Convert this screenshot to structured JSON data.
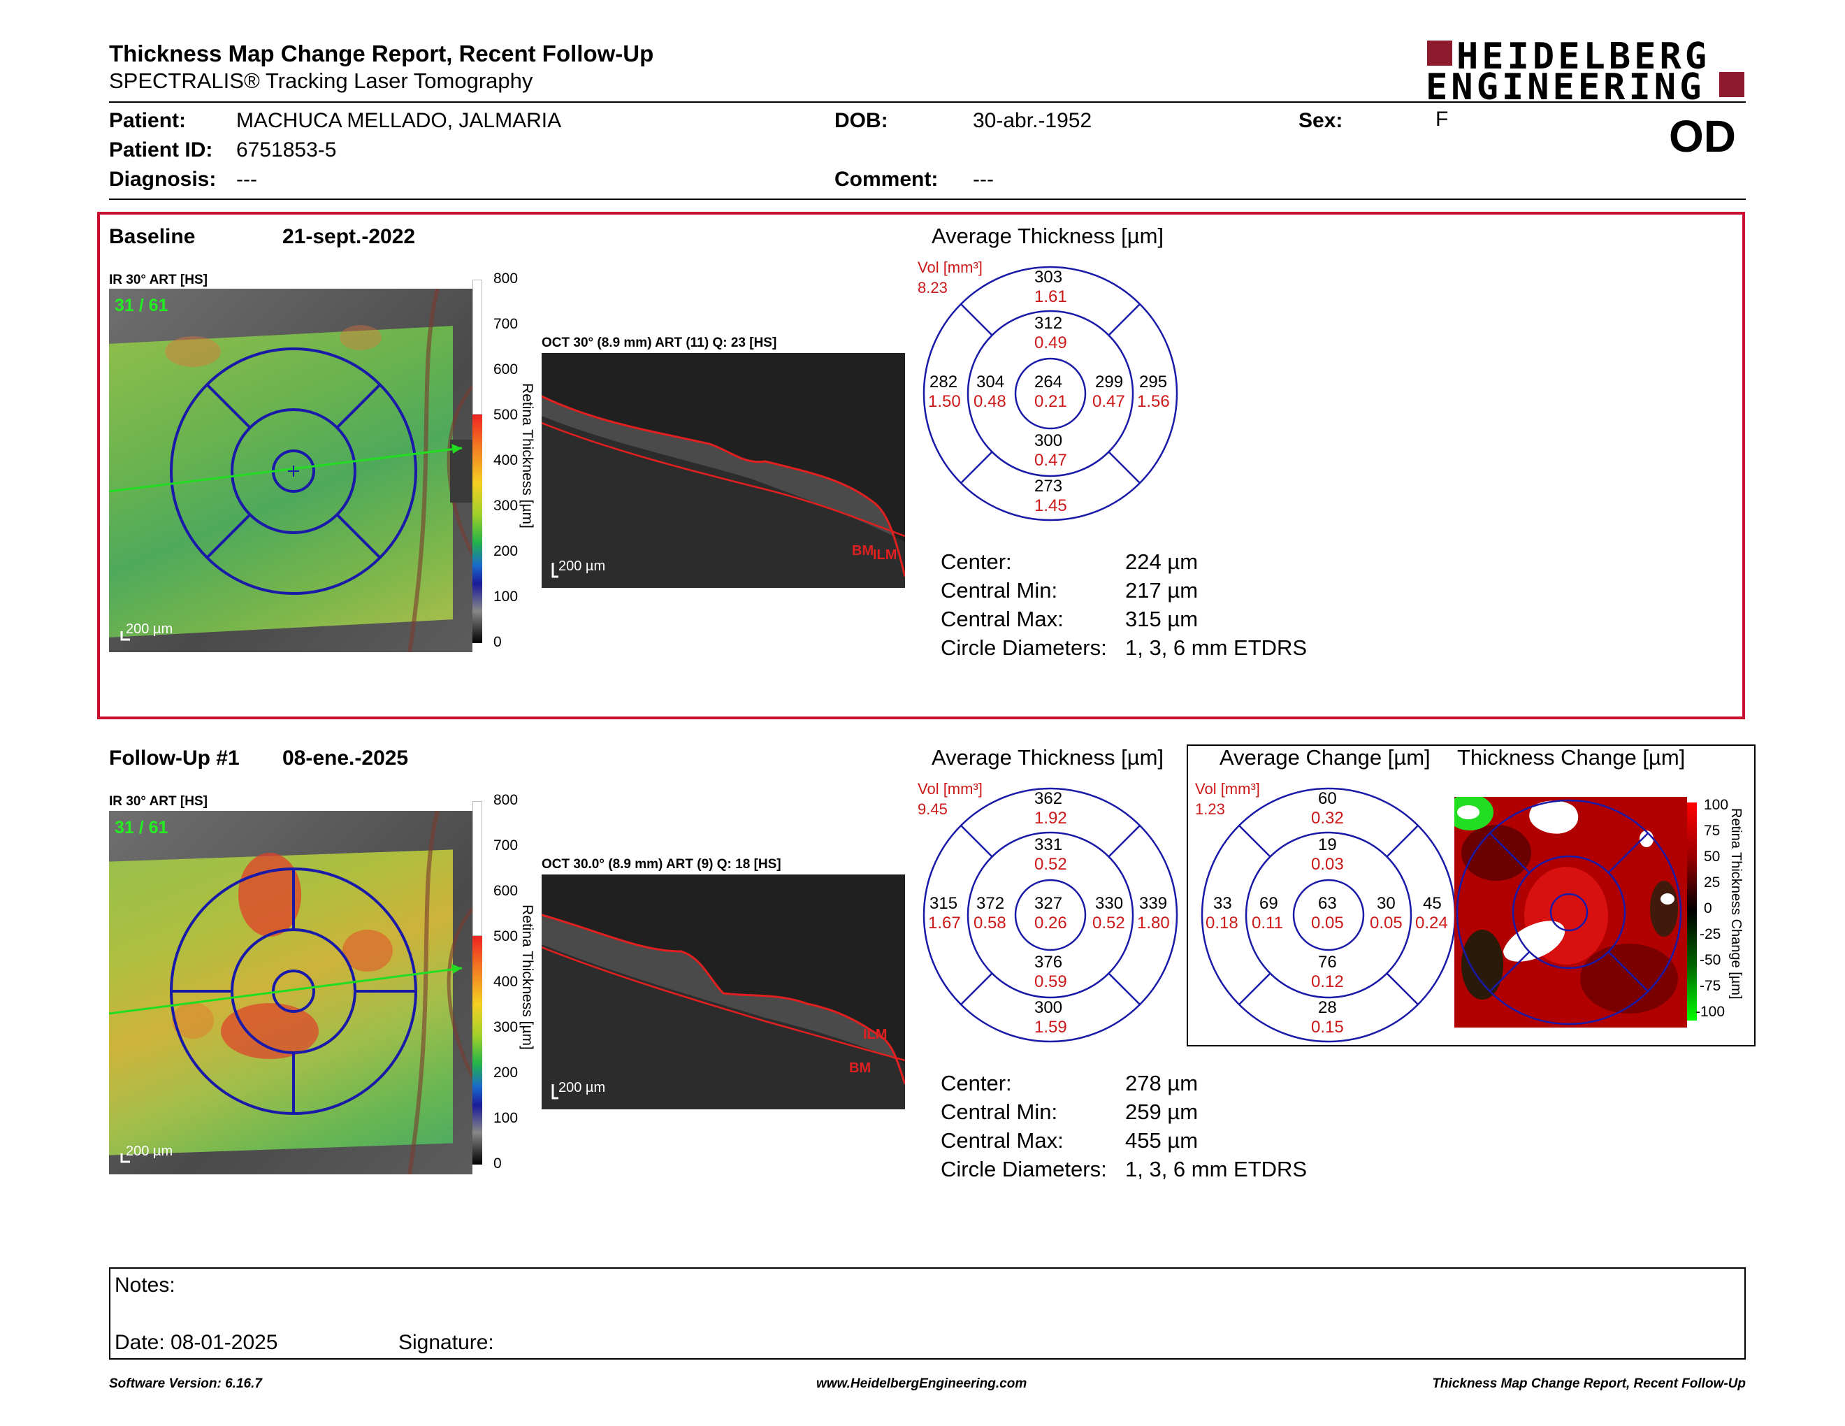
{
  "header": {
    "title": "Thickness Map Change Report, Recent Follow-Up",
    "subtitle": "SPECTRALIS® Tracking Laser Tomography",
    "logo_line1": "HEIDELBERG",
    "logo_line2": "ENGINEERING",
    "eye": "OD"
  },
  "patient": {
    "patient_label": "Patient:",
    "patient_value": "MACHUCA MELLADO, JALMARIA",
    "id_label": "Patient ID:",
    "id_value": "6751853-5",
    "diagnosis_label": "Diagnosis:",
    "diagnosis_value": "---",
    "dob_label": "DOB:",
    "dob_value": "30-abr.-1952",
    "comment_label": "Comment:",
    "comment_value": "---",
    "sex_label": "Sex:",
    "sex_value": "F"
  },
  "baseline": {
    "label": "Baseline",
    "date": "21-sept.-2022",
    "ir_label": "IR 30° ART [HS]",
    "frame_count": "31 / 61",
    "scale_bar": "200 µm",
    "oct_label": "OCT 30° (8.9 mm) ART (11) Q: 23 [HS]",
    "oct_scale": "200 µm",
    "ilm": "ILM",
    "bm": "BM",
    "colorbar_title": "Retina Thickness [µm]",
    "colorbar_ticks": [
      "800",
      "700",
      "600",
      "500",
      "400",
      "300",
      "200",
      "100",
      "0"
    ],
    "avg_title": "Average Thickness [µm]",
    "vol_label": "Vol [mm³]",
    "vol_value": "8.23",
    "etdrs": {
      "outer_sup": "303",
      "outer_sup_v": "1.61",
      "inner_sup": "312",
      "inner_sup_v": "0.49",
      "outer_temp": "282",
      "outer_temp_v": "1.50",
      "inner_temp": "304",
      "inner_temp_v": "0.48",
      "center": "264",
      "center_v": "0.21",
      "inner_nas": "299",
      "inner_nas_v": "0.47",
      "outer_nas": "295",
      "outer_nas_v": "1.56",
      "inner_inf": "300",
      "inner_inf_v": "0.47",
      "outer_inf": "273",
      "outer_inf_v": "1.45"
    },
    "stats": {
      "center_label": "Center:",
      "center_value": "224 µm",
      "min_label": "Central Min:",
      "min_value": "217 µm",
      "max_label": "Central Max:",
      "max_value": "315 µm",
      "circ_label": "Circle Diameters:",
      "circ_value": "1, 3, 6 mm ETDRS"
    }
  },
  "followup": {
    "label": "Follow-Up #1",
    "date": "08-ene.-2025",
    "ir_label": "IR 30° ART [HS]",
    "frame_count": "31 / 61",
    "scale_bar": "200 µm",
    "oct_label": "OCT 30.0° (8.9 mm) ART (9) Q: 18 [HS]",
    "oct_scale": "200 µm",
    "ilm": "ILM",
    "bm": "BM",
    "colorbar_title": "Retina Thickness [µm]",
    "colorbar_ticks": [
      "800",
      "700",
      "600",
      "500",
      "400",
      "300",
      "200",
      "100",
      "0"
    ],
    "avg_title": "Average Thickness [µm]",
    "vol_label": "Vol [mm³]",
    "vol_value": "9.45",
    "etdrs": {
      "outer_sup": "362",
      "outer_sup_v": "1.92",
      "inner_sup": "331",
      "inner_sup_v": "0.52",
      "outer_temp": "315",
      "outer_temp_v": "1.67",
      "inner_temp": "372",
      "inner_temp_v": "0.58",
      "center": "327",
      "center_v": "0.26",
      "inner_nas": "330",
      "inner_nas_v": "0.52",
      "outer_nas": "339",
      "outer_nas_v": "1.80",
      "inner_inf": "376",
      "inner_inf_v": "0.59",
      "outer_inf": "300",
      "outer_inf_v": "1.59"
    },
    "stats": {
      "center_label": "Center:",
      "center_value": "278 µm",
      "min_label": "Central Min:",
      "min_value": "259 µm",
      "max_label": "Central Max:",
      "max_value": "455 µm",
      "circ_label": "Circle Diameters:",
      "circ_value": "1, 3, 6 mm ETDRS"
    }
  },
  "change": {
    "avg_title": "Average Change [µm]",
    "map_title": "Thickness Change [µm]",
    "vol_label": "Vol [mm³]",
    "vol_value": "1.23",
    "etdrs": {
      "outer_sup": "60",
      "outer_sup_v": "0.32",
      "inner_sup": "19",
      "inner_sup_v": "0.03",
      "outer_temp": "33",
      "outer_temp_v": "0.18",
      "inner_temp": "69",
      "inner_temp_v": "0.11",
      "center": "63",
      "center_v": "0.05",
      "inner_nas": "30",
      "inner_nas_v": "0.05",
      "outer_nas": "45",
      "outer_nas_v": "0.24",
      "inner_inf": "76",
      "inner_inf_v": "0.12",
      "outer_inf": "28",
      "outer_inf_v": "0.15"
    },
    "colorbar_title": "Retina Thickness Change [µm]",
    "colorbar_ticks": [
      "100",
      "75",
      "50",
      "25",
      "0",
      "-25",
      "-50",
      "-75",
      "-100"
    ]
  },
  "notes": {
    "notes_label": "Notes:",
    "date_label": "Date: 08-01-2025",
    "signature_label": "Signature:"
  },
  "footer": {
    "left": "Software Version: 6.16.7",
    "center": "www.HeidelbergEngineering.com",
    "right": "Thickness Map Change Report, Recent Follow-Up"
  },
  "colors": {
    "brand": "#8e1a2e",
    "etdrs_line": "#1a1aa8",
    "vol_red": "#cc1a1a",
    "box_red": "#c8102e"
  }
}
